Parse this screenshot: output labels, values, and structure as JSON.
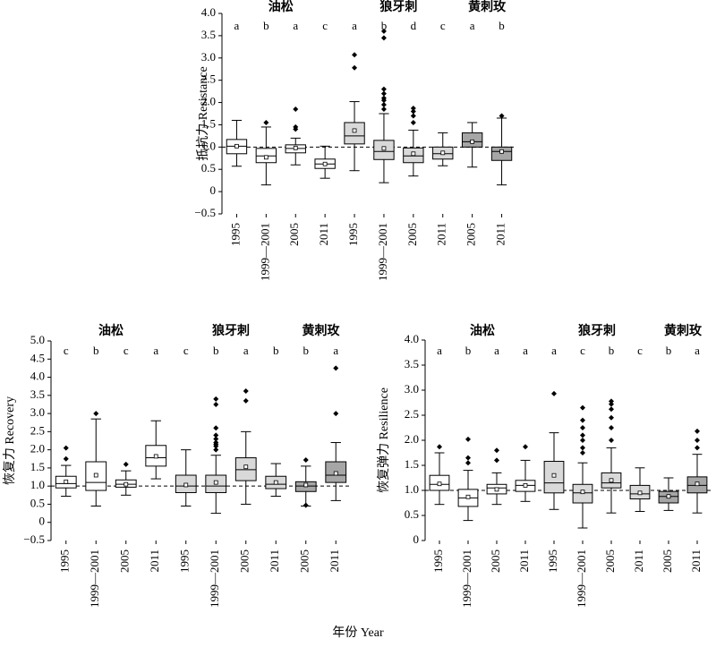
{
  "chart_data": [
    {
      "type": "box",
      "ylabel": "抵抗力 Resistance",
      "ylim": [
        -0.5,
        4
      ],
      "hline": 1,
      "yticks": [
        {
          "value": -0.5,
          "label": "−0.5"
        },
        0,
        0.5,
        {
          "value": 1,
          "label": "1.0"
        },
        1.5,
        {
          "value": 2,
          "label": "2.0"
        },
        2.5,
        {
          "value": 3,
          "label": "3.0"
        },
        3.5,
        {
          "value": 4,
          "label": "4.0"
        }
      ],
      "series": [
        {
          "name": "油松",
          "color": "#ffffff",
          "categories": [
            "1995",
            "1999—2001",
            "2005",
            "2011"
          ],
          "letters": [
            "a",
            "b",
            "a",
            "c"
          ],
          "boxes": [
            {
              "low": 0.57,
              "q1": 0.85,
              "median": 1.02,
              "q3": 1.17,
              "high": 1.6,
              "mean": 1.02,
              "outliers": []
            },
            {
              "low": 0.15,
              "q1": 0.65,
              "median": 0.8,
              "q3": 0.97,
              "high": 1.45,
              "mean": 0.77,
              "outliers": [
                1.55
              ]
            },
            {
              "low": 0.6,
              "q1": 0.87,
              "median": 0.97,
              "q3": 1.05,
              "high": 1.2,
              "mean": 0.98,
              "outliers": [
                1.4,
                1.45,
                1.85
              ]
            },
            {
              "low": 0.3,
              "q1": 0.52,
              "median": 0.62,
              "q3": 0.73,
              "high": 1.02,
              "mean": 0.62,
              "outliers": []
            }
          ]
        },
        {
          "name": "狼牙刺",
          "color": "#d9d9d9",
          "categories": [
            "1995",
            "1999—2001",
            "2005",
            "2011"
          ],
          "letters": [
            "a",
            "b",
            "d",
            "c"
          ],
          "boxes": [
            {
              "low": 0.47,
              "q1": 1.07,
              "median": 1.25,
              "q3": 1.55,
              "high": 2.02,
              "mean": 1.37,
              "outliers": [
                2.78,
                3.07
              ]
            },
            {
              "low": 0.2,
              "q1": 0.72,
              "median": 0.9,
              "q3": 1.15,
              "high": 1.75,
              "mean": 0.97,
              "outliers": [
                1.85,
                1.95,
                2.05,
                2.1,
                2.2,
                2.3,
                3.45,
                3.6
              ]
            },
            {
              "low": 0.35,
              "q1": 0.65,
              "median": 0.8,
              "q3": 0.98,
              "high": 1.38,
              "mean": 0.85,
              "outliers": [
                1.55,
                1.7,
                1.8,
                1.87
              ]
            },
            {
              "low": 0.58,
              "q1": 0.73,
              "median": 0.85,
              "q3": 1.0,
              "high": 1.32,
              "mean": 0.87,
              "outliers": []
            }
          ]
        },
        {
          "name": "黄刺玫",
          "color": "#a6a6a6",
          "categories": [
            "2005",
            "2011"
          ],
          "letters": [
            "a",
            "b"
          ],
          "boxes": [
            {
              "low": 0.55,
              "q1": 1.0,
              "median": 1.12,
              "q3": 1.32,
              "high": 1.55,
              "mean": 1.12,
              "outliers": []
            },
            {
              "low": 0.15,
              "q1": 0.7,
              "median": 0.9,
              "q3": 1.0,
              "high": 1.65,
              "mean": 0.9,
              "outliers": [
                1.7
              ]
            }
          ]
        }
      ]
    },
    {
      "type": "box",
      "ylabel": "恢复力 Recovery",
      "ylim": [
        -0.5,
        5
      ],
      "hline": 1,
      "yticks": [
        {
          "value": -0.5,
          "label": "−0.5"
        },
        0,
        0.5,
        {
          "value": 1,
          "label": "1.0"
        },
        1.5,
        {
          "value": 2,
          "label": "2.0"
        },
        2.5,
        {
          "value": 3,
          "label": "3.0"
        },
        3.5,
        {
          "value": 4,
          "label": "4.0"
        },
        4.5,
        {
          "value": 5,
          "label": "5.0"
        }
      ],
      "series": [
        {
          "name": "油松",
          "color": "#ffffff",
          "categories": [
            "1995",
            "1999—2001",
            "2005",
            "2011"
          ],
          "letters": [
            "c",
            "b",
            "c",
            "a"
          ],
          "boxes": [
            {
              "low": 0.72,
              "q1": 0.95,
              "median": 1.07,
              "q3": 1.27,
              "high": 1.57,
              "mean": 1.12,
              "outliers": [
                1.75,
                2.05
              ]
            },
            {
              "low": 0.45,
              "q1": 0.88,
              "median": 1.1,
              "q3": 1.67,
              "high": 2.85,
              "mean": 1.3,
              "outliers": [
                3.0
              ]
            },
            {
              "low": 0.75,
              "q1": 0.97,
              "median": 1.05,
              "q3": 1.17,
              "high": 1.42,
              "mean": 1.05,
              "outliers": [
                1.6
              ]
            },
            {
              "low": 1.2,
              "q1": 1.55,
              "median": 1.78,
              "q3": 2.12,
              "high": 2.8,
              "mean": 1.82,
              "outliers": []
            }
          ]
        },
        {
          "name": "狼牙刺",
          "color": "#d9d9d9",
          "categories": [
            "1995",
            "1999—2001",
            "2005",
            "2011"
          ],
          "letters": [
            "c",
            "b",
            "a",
            "b"
          ],
          "boxes": [
            {
              "low": 0.45,
              "q1": 0.82,
              "median": 1.0,
              "q3": 1.3,
              "high": 2.0,
              "mean": 1.03,
              "outliers": []
            },
            {
              "low": 0.25,
              "q1": 0.82,
              "median": 1.0,
              "q3": 1.3,
              "high": 1.85,
              "mean": 1.1,
              "outliers": [
                2.0,
                2.1,
                2.15,
                2.2,
                2.3,
                2.4,
                2.6,
                3.25,
                3.4
              ]
            },
            {
              "low": 0.5,
              "q1": 1.15,
              "median": 1.45,
              "q3": 1.78,
              "high": 2.5,
              "mean": 1.53,
              "outliers": [
                3.35,
                3.62
              ]
            },
            {
              "low": 0.72,
              "q1": 0.93,
              "median": 1.05,
              "q3": 1.27,
              "high": 1.62,
              "mean": 1.1,
              "outliers": []
            }
          ]
        },
        {
          "name": "黄刺玫",
          "color": "#a6a6a6",
          "categories": [
            "2005",
            "2011"
          ],
          "letters": [
            "b",
            "a"
          ],
          "boxes": [
            {
              "low": 0.45,
              "q1": 0.85,
              "median": 1.0,
              "q3": 1.12,
              "high": 1.55,
              "mean": 1.03,
              "outliers": [
                0.47,
                1.72
              ]
            },
            {
              "low": 0.6,
              "q1": 1.1,
              "median": 1.3,
              "q3": 1.67,
              "high": 2.2,
              "mean": 1.35,
              "outliers": [
                3.0,
                4.25
              ]
            }
          ]
        }
      ]
    },
    {
      "type": "box",
      "ylabel": "恢复弹力 Resilience",
      "ylim": [
        0,
        4
      ],
      "hline": 1,
      "yticks": [
        0,
        0.5,
        {
          "value": 1,
          "label": "1.0"
        },
        1.5,
        {
          "value": 2,
          "label": "2.0"
        },
        2.5,
        {
          "value": 3,
          "label": "3.0"
        },
        3.5,
        {
          "value": 4,
          "label": "4.0"
        }
      ],
      "series": [
        {
          "name": "油松",
          "color": "#ffffff",
          "categories": [
            "1995",
            "1999—2001",
            "2005",
            "2011"
          ],
          "letters": [
            "a",
            "b",
            "a",
            "a"
          ],
          "boxes": [
            {
              "low": 0.72,
              "q1": 1.0,
              "median": 1.12,
              "q3": 1.3,
              "high": 1.75,
              "mean": 1.13,
              "outliers": [
                1.87
              ]
            },
            {
              "low": 0.4,
              "q1": 0.68,
              "median": 0.85,
              "q3": 1.02,
              "high": 1.4,
              "mean": 0.87,
              "outliers": [
                1.55,
                1.65,
                2.02
              ]
            },
            {
              "low": 0.72,
              "q1": 0.93,
              "median": 1.05,
              "q3": 1.12,
              "high": 1.35,
              "mean": 1.02,
              "outliers": [
                1.6,
                1.8
              ]
            },
            {
              "low": 0.78,
              "q1": 0.98,
              "median": 1.1,
              "q3": 1.2,
              "high": 1.6,
              "mean": 1.1,
              "outliers": [
                1.87
              ]
            }
          ]
        },
        {
          "name": "狼牙刺",
          "color": "#d9d9d9",
          "categories": [
            "1995",
            "1999—2001",
            "2005",
            "2011"
          ],
          "letters": [
            "a",
            "c",
            "b",
            "c"
          ],
          "boxes": [
            {
              "low": 0.62,
              "q1": 0.95,
              "median": 1.15,
              "q3": 1.58,
              "high": 2.15,
              "mean": 1.3,
              "outliers": [
                2.93
              ]
            },
            {
              "low": 0.25,
              "q1": 0.75,
              "median": 0.95,
              "q3": 1.12,
              "high": 1.55,
              "mean": 0.97,
              "outliers": [
                1.75,
                1.85,
                2.0,
                2.1,
                2.25,
                2.4,
                2.65
              ]
            },
            {
              "low": 0.55,
              "q1": 1.05,
              "median": 1.15,
              "q3": 1.35,
              "high": 1.85,
              "mean": 1.2,
              "outliers": [
                2.0,
                2.25,
                2.45,
                2.62,
                2.72,
                2.78
              ]
            },
            {
              "low": 0.58,
              "q1": 0.83,
              "median": 0.93,
              "q3": 1.1,
              "high": 1.45,
              "mean": 0.95,
              "outliers": []
            }
          ]
        },
        {
          "name": "黄刺玫",
          "color": "#a6a6a6",
          "categories": [
            "2005",
            "2011"
          ],
          "letters": [
            "b",
            "a"
          ],
          "boxes": [
            {
              "low": 0.6,
              "q1": 0.75,
              "median": 0.88,
              "q3": 0.98,
              "high": 1.25,
              "mean": 0.88,
              "outliers": []
            },
            {
              "low": 0.55,
              "q1": 0.95,
              "median": 1.1,
              "q3": 1.27,
              "high": 1.72,
              "mean": 1.13,
              "outliers": [
                1.85,
                2.0,
                2.18
              ]
            }
          ]
        }
      ]
    }
  ],
  "xlabel": "年份 Year"
}
